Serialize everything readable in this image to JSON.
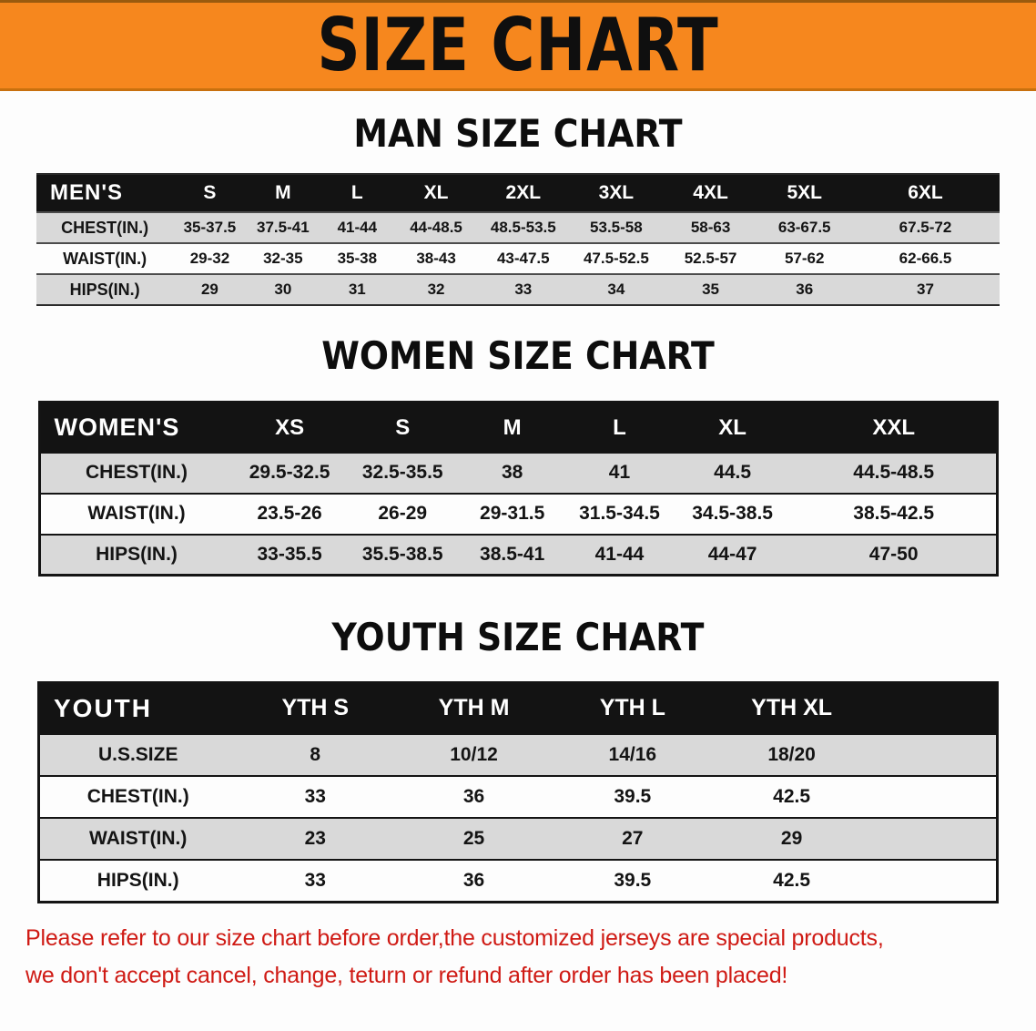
{
  "banner": {
    "title": "SIZE CHART",
    "bg_color": "#f6871e"
  },
  "sections": [
    {
      "heading": "MAN SIZE CHART",
      "table": {
        "label": "MEN'S",
        "columns": [
          "S",
          "M",
          "L",
          "XL",
          "2XL",
          "3XL",
          "4XL",
          "5XL",
          "6XL"
        ],
        "rows": [
          {
            "label": "CHEST(IN.)",
            "values": [
              "35-37.5",
              "37.5-41",
              "41-44",
              "44-48.5",
              "48.5-53.5",
              "53.5-58",
              "58-63",
              "63-67.5",
              "67.5-72"
            ]
          },
          {
            "label": "WAIST(IN.)",
            "values": [
              "29-32",
              "32-35",
              "35-38",
              "38-43",
              "43-47.5",
              "47.5-52.5",
              "52.5-57",
              "57-62",
              "62-66.5"
            ]
          },
          {
            "label": "HIPS(IN.)",
            "values": [
              "29",
              "30",
              "31",
              "32",
              "33",
              "34",
              "35",
              "36",
              "37"
            ]
          }
        ]
      }
    },
    {
      "heading": "WOMEN SIZE CHART",
      "table": {
        "label": "WOMEN'S",
        "columns": [
          "XS",
          "S",
          "M",
          "L",
          "XL",
          "XXL"
        ],
        "rows": [
          {
            "label": "CHEST(IN.)",
            "values": [
              "29.5-32.5",
              "32.5-35.5",
              "38",
              "41",
              "44.5",
              "44.5-48.5"
            ]
          },
          {
            "label": "WAIST(IN.)",
            "values": [
              "23.5-26",
              "26-29",
              "29-31.5",
              "31.5-34.5",
              "34.5-38.5",
              "38.5-42.5"
            ]
          },
          {
            "label": "HIPS(IN.)",
            "values": [
              "33-35.5",
              "35.5-38.5",
              "38.5-41",
              "41-44",
              "44-47",
              "47-50"
            ]
          }
        ]
      }
    },
    {
      "heading": "YOUTH SIZE CHART",
      "table": {
        "label": "YOUTH",
        "columns": [
          "YTH S",
          "YTH M",
          "YTH L",
          "YTH XL"
        ],
        "rows": [
          {
            "label": "U.S.SIZE",
            "values": [
              "8",
              "10/12",
              "14/16",
              "18/20"
            ]
          },
          {
            "label": "CHEST(IN.)",
            "values": [
              "33",
              "36",
              "39.5",
              "42.5"
            ]
          },
          {
            "label": "WAIST(IN.)",
            "values": [
              "23",
              "25",
              "27",
              "29"
            ]
          },
          {
            "label": "HIPS(IN.)",
            "values": [
              "33",
              "36",
              "39.5",
              "42.5"
            ]
          }
        ]
      }
    }
  ],
  "notice": {
    "lines": [
      "Please refer to our size chart before order,the customized jerseys are special products,",
      "we don't accept cancel, change, teturn or refund after order has been placed!"
    ],
    "color": "#cf1a14"
  }
}
